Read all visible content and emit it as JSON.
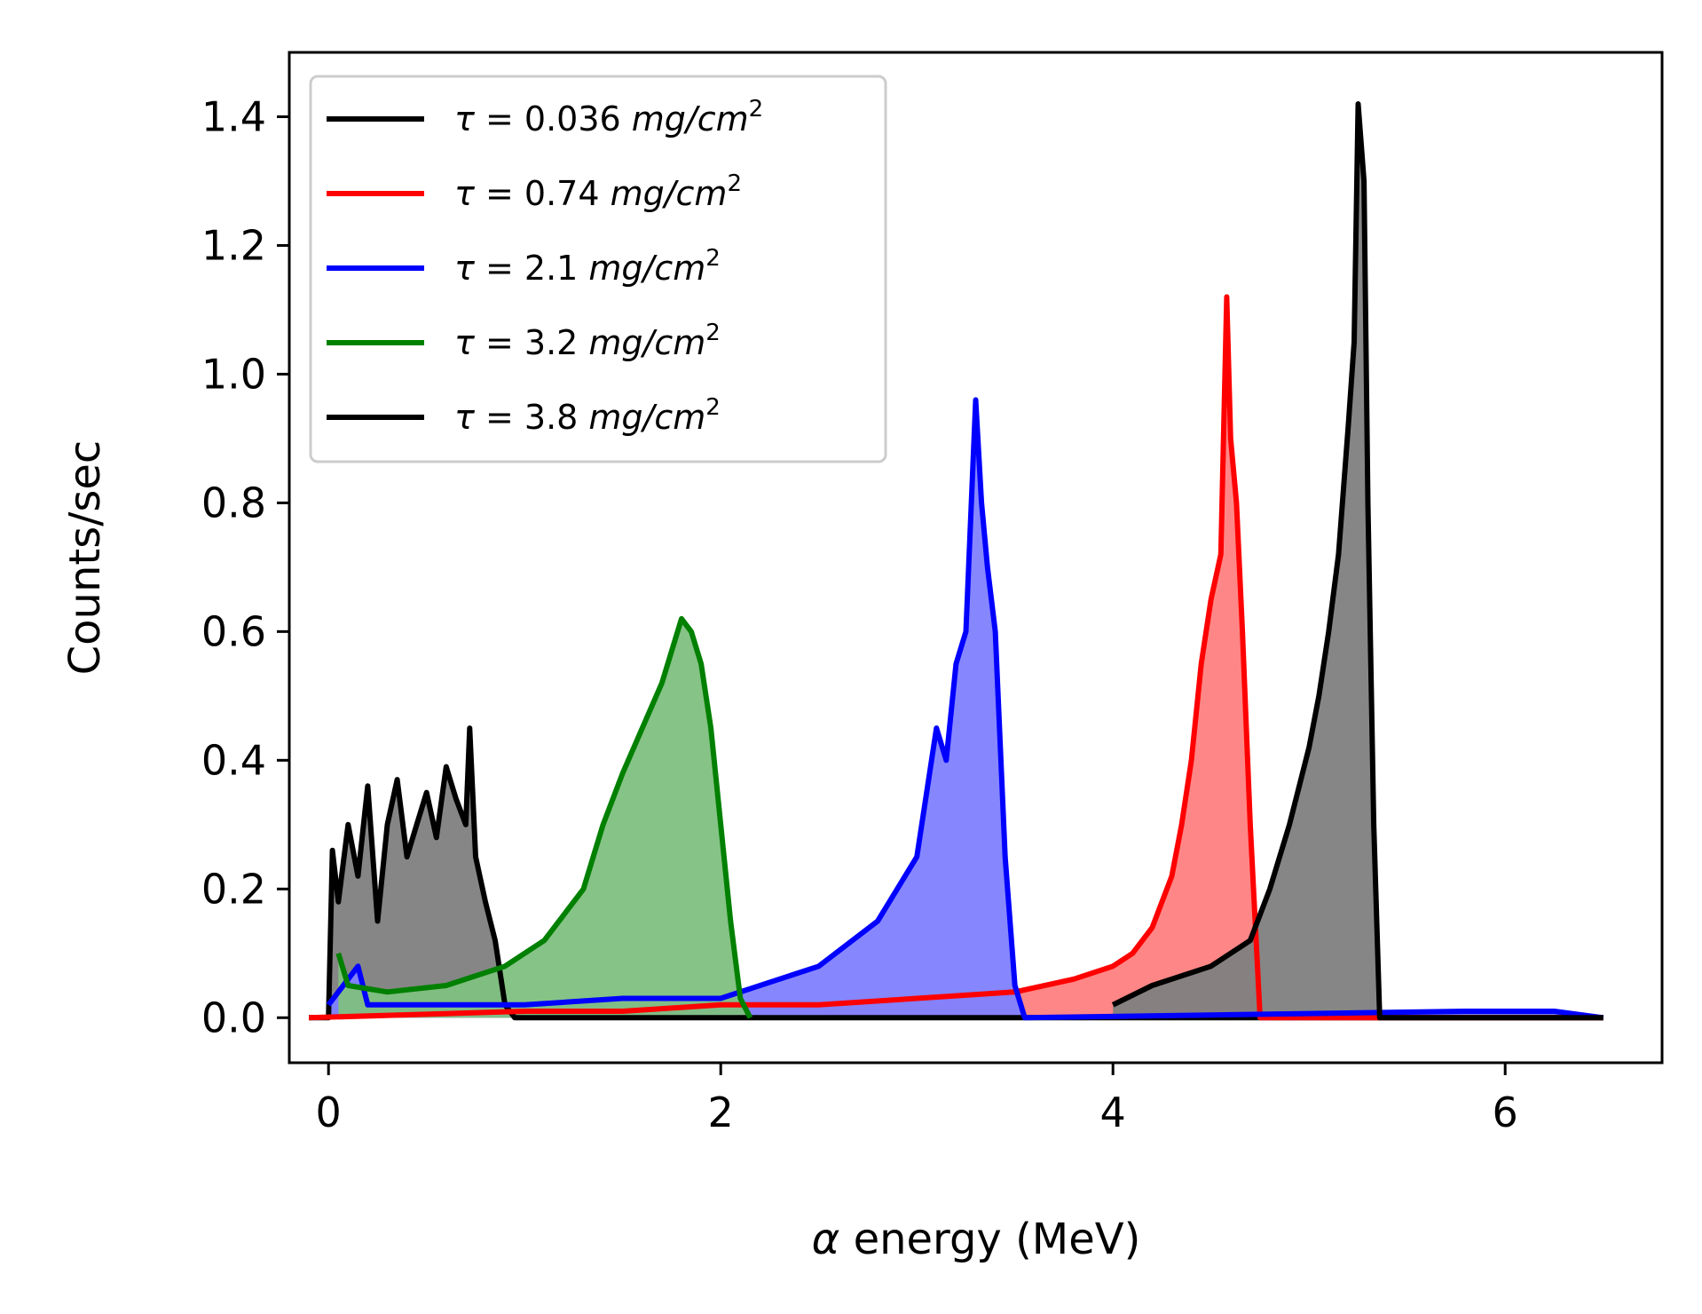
{
  "chart_data": {
    "type": "line",
    "title": "",
    "xlabel_symbol": "α",
    "xlabel_text": " energy (MeV)",
    "ylabel": "Counts/sec",
    "xlim": [
      -0.2,
      6.8
    ],
    "ylim": [
      -0.07,
      1.5
    ],
    "xticks": [
      0,
      2,
      4,
      6
    ],
    "yticks": [
      0.0,
      0.2,
      0.4,
      0.6,
      0.8,
      1.0,
      1.2,
      1.4
    ],
    "grid": false,
    "filled": true,
    "legend_position": "upper-left",
    "series": [
      {
        "name_prefix": "τ = ",
        "name_value": " 0.036 ",
        "name_unit": "mg/cm",
        "name_sup": "2",
        "color": "#000000",
        "fill": "#808080",
        "x": [
          -0.1,
          0.0,
          0.02,
          0.05,
          0.1,
          0.15,
          0.2,
          0.25,
          0.3,
          0.35,
          0.4,
          0.45,
          0.5,
          0.55,
          0.6,
          0.65,
          0.7,
          0.72,
          0.75,
          0.8,
          0.85,
          0.9,
          0.95,
          1.0,
          6.5
        ],
        "y": [
          0.0,
          0.0,
          0.26,
          0.18,
          0.3,
          0.22,
          0.36,
          0.15,
          0.3,
          0.37,
          0.25,
          0.3,
          0.35,
          0.28,
          0.39,
          0.34,
          0.3,
          0.45,
          0.25,
          0.18,
          0.12,
          0.02,
          0.0,
          0.0,
          0.0
        ]
      },
      {
        "name_prefix": "τ = ",
        "name_value": " 0.74 ",
        "name_unit": "mg/cm",
        "name_sup": "2",
        "color": "#ff0000",
        "fill": "#ff8080",
        "x": [
          -0.1,
          1.0,
          1.5,
          2.0,
          2.5,
          3.0,
          3.5,
          3.8,
          4.0,
          4.1,
          4.2,
          4.3,
          4.35,
          4.4,
          4.45,
          4.5,
          4.55,
          4.58,
          4.6,
          4.63,
          4.66,
          4.7,
          4.75,
          4.8,
          6.5
        ],
        "y": [
          0.0,
          0.01,
          0.01,
          0.02,
          0.02,
          0.03,
          0.04,
          0.06,
          0.08,
          0.1,
          0.14,
          0.22,
          0.3,
          0.4,
          0.55,
          0.65,
          0.72,
          1.12,
          0.9,
          0.8,
          0.6,
          0.3,
          0.0,
          0.0,
          0.0
        ]
      },
      {
        "name_prefix": "τ = ",
        "name_value": " 2.1 ",
        "name_unit": "mg/cm",
        "name_sup": "2",
        "color": "#0000ff",
        "fill": "#8080ff",
        "x": [
          0.0,
          0.15,
          0.2,
          0.5,
          1.0,
          1.5,
          2.0,
          2.5,
          2.8,
          3.0,
          3.1,
          3.15,
          3.2,
          3.25,
          3.3,
          3.33,
          3.36,
          3.4,
          3.45,
          3.5,
          3.55,
          5.8,
          6.25,
          6.5
        ],
        "y": [
          0.02,
          0.08,
          0.02,
          0.02,
          0.02,
          0.03,
          0.03,
          0.08,
          0.15,
          0.25,
          0.45,
          0.4,
          0.55,
          0.6,
          0.96,
          0.8,
          0.7,
          0.6,
          0.25,
          0.05,
          0.0,
          0.01,
          0.01,
          0.0
        ]
      },
      {
        "name_prefix": "τ = ",
        "name_value": " 3.2 ",
        "name_unit": "mg/cm",
        "name_sup": "2",
        "color": "#008000",
        "fill": "#80c080",
        "x": [
          0.05,
          0.1,
          0.3,
          0.6,
          0.9,
          1.1,
          1.3,
          1.4,
          1.5,
          1.6,
          1.7,
          1.8,
          1.85,
          1.9,
          1.95,
          2.0,
          2.05,
          2.1,
          2.15
        ],
        "y": [
          0.1,
          0.05,
          0.04,
          0.05,
          0.08,
          0.12,
          0.2,
          0.3,
          0.38,
          0.45,
          0.52,
          0.62,
          0.6,
          0.55,
          0.45,
          0.3,
          0.15,
          0.03,
          0.0
        ]
      },
      {
        "name_prefix": "τ = ",
        "name_value": " 3.8 ",
        "name_unit": "mg/cm",
        "name_sup": "2",
        "color": "#000000",
        "fill": "#808080",
        "x": [
          4.0,
          4.2,
          4.5,
          4.7,
          4.8,
          4.9,
          5.0,
          5.05,
          5.1,
          5.15,
          5.2,
          5.23,
          5.25,
          5.28,
          5.3,
          5.33,
          5.36,
          6.5
        ],
        "y": [
          0.02,
          0.05,
          0.08,
          0.12,
          0.2,
          0.3,
          0.42,
          0.5,
          0.6,
          0.72,
          0.92,
          1.05,
          1.42,
          1.3,
          0.8,
          0.3,
          0.0,
          0.0
        ]
      }
    ]
  }
}
